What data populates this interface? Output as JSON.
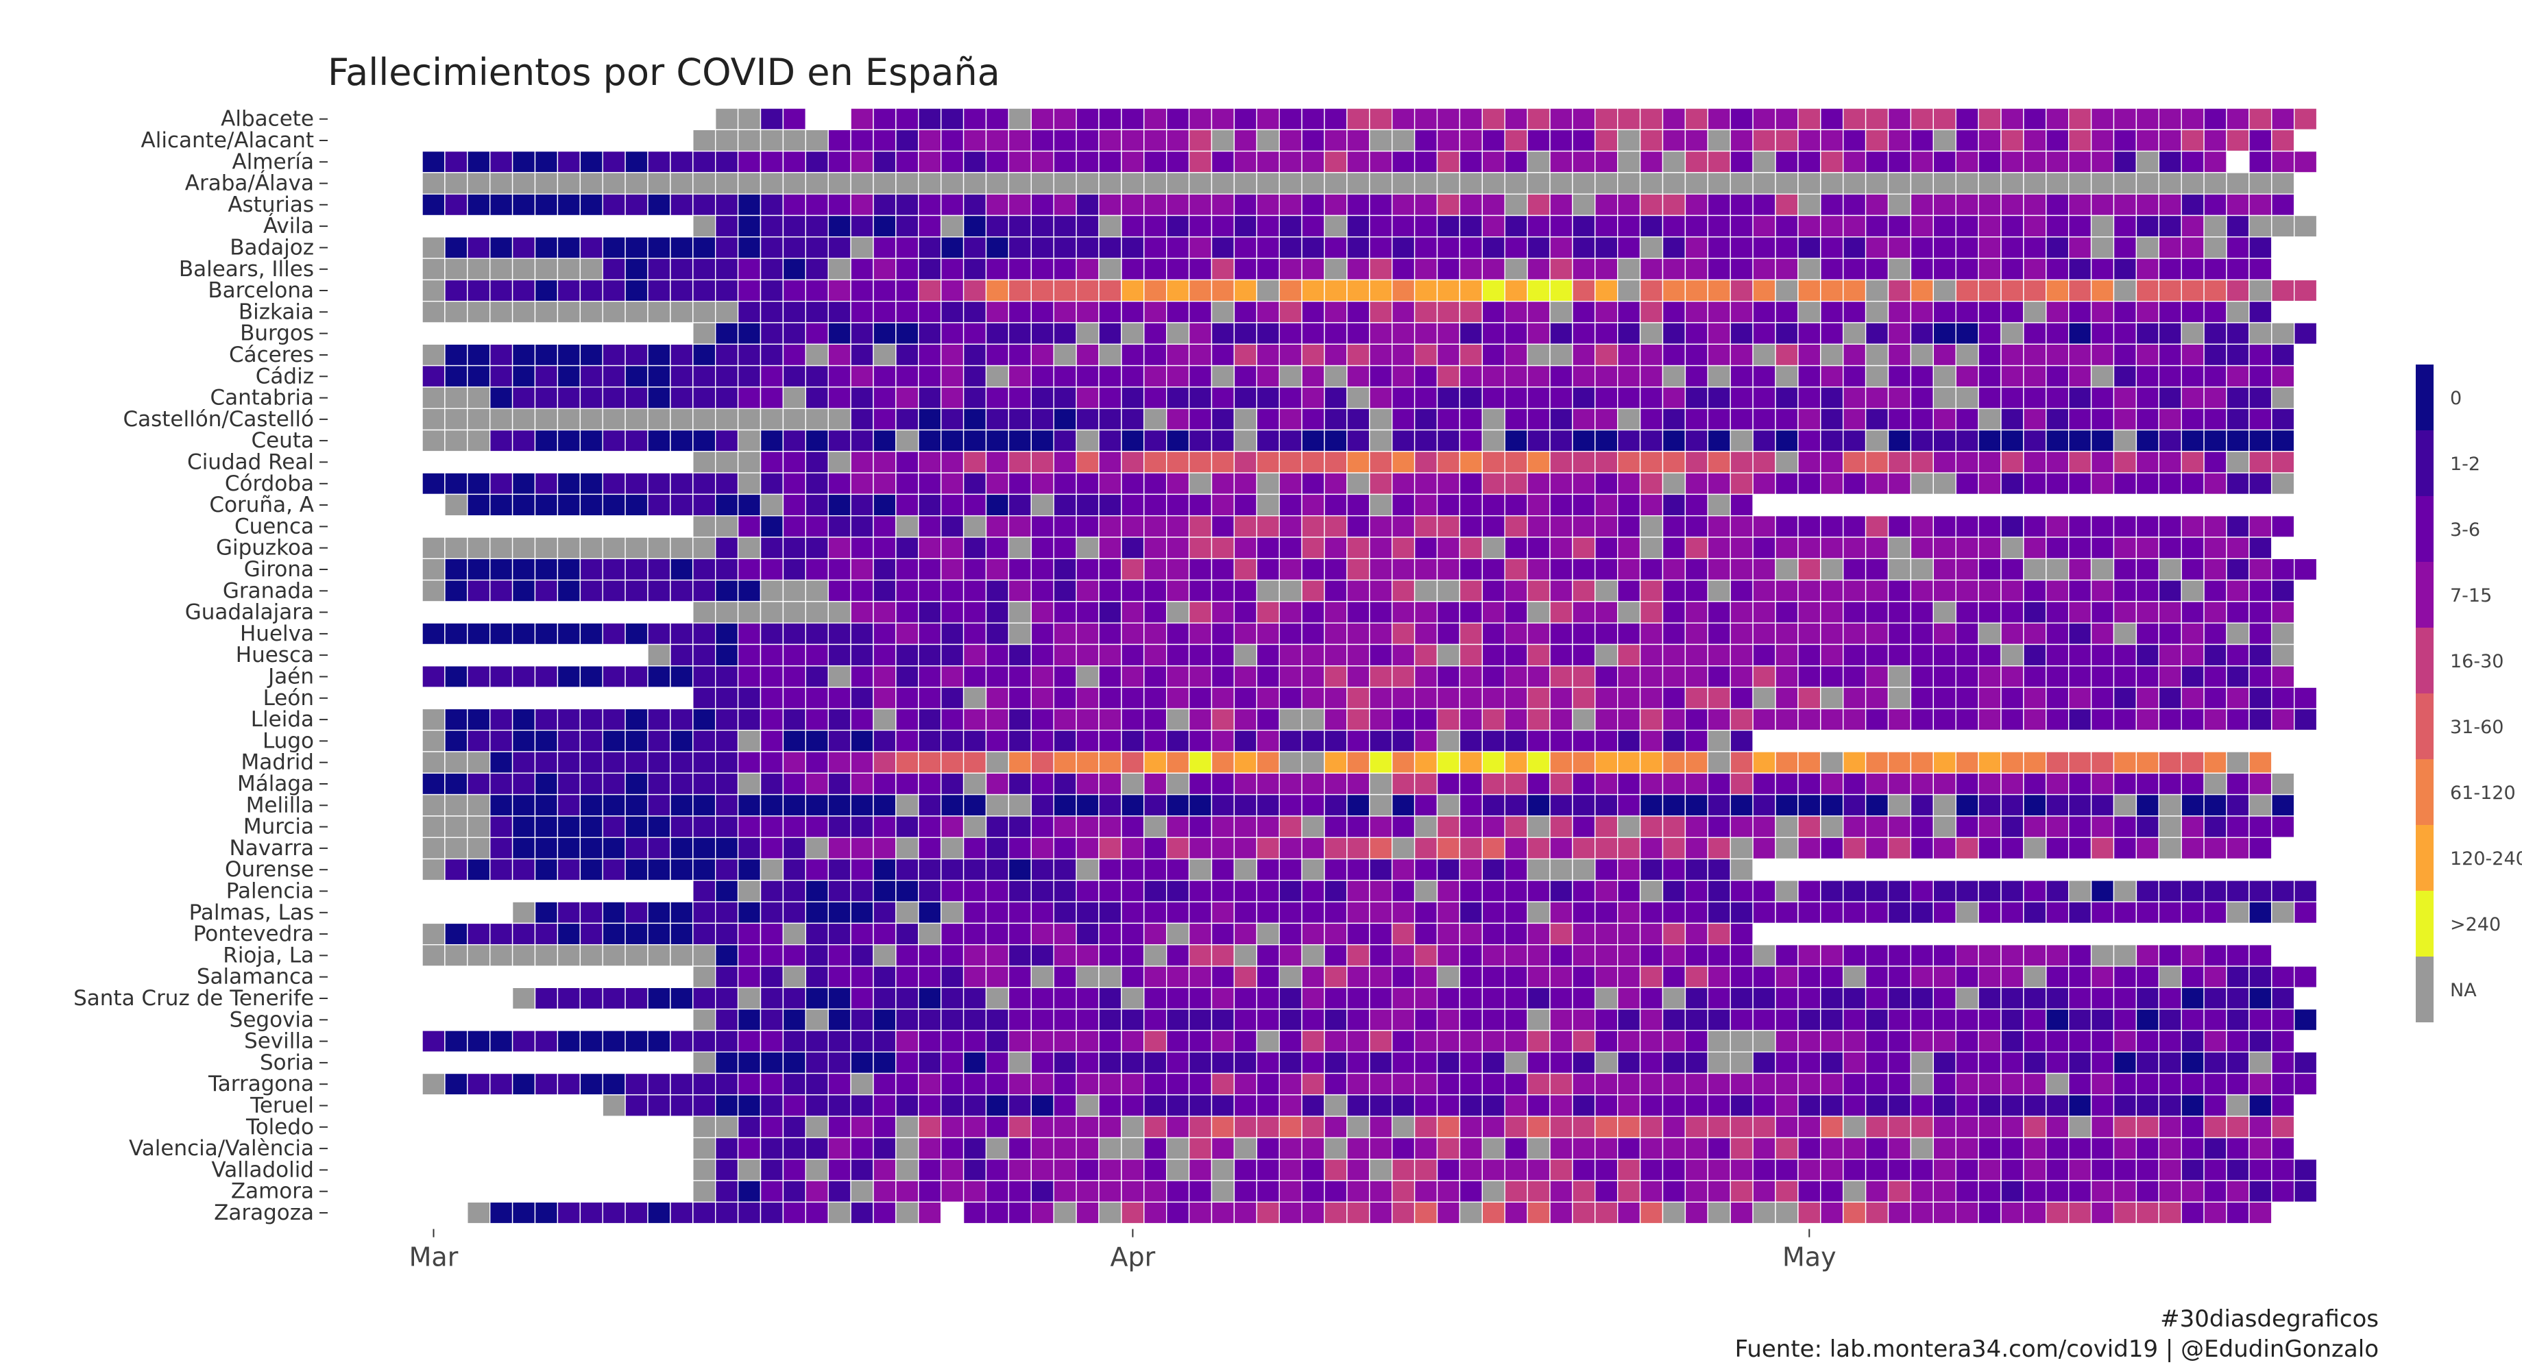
{
  "chart_data": {
    "type": "heatmap",
    "title": "Fallecimientos por COVID en España",
    "caption_line1": "#30diasdegraficos",
    "caption_line2": "Fuente: lab.montera34.com/covid19 |  @EdudinGonzalo",
    "x_ticks": [
      {
        "label": "Mar",
        "day": 0
      },
      {
        "label": "Apr",
        "day": 31
      },
      {
        "label": "May",
        "day": 61
      }
    ],
    "days": 84,
    "provinces": [
      "Albacete",
      "Alicante/Alacant",
      "Almería",
      "Araba/Álava",
      "Asturias",
      "Ávila",
      "Badajoz",
      "Balears, Illes",
      "Barcelona",
      "Bizkaia",
      "Burgos",
      "Cáceres",
      "Cádiz",
      "Cantabria",
      "Castellón/Castelló",
      "Ceuta",
      "Ciudad Real",
      "Córdoba",
      "Coruña, A",
      "Cuenca",
      "Gipuzkoa",
      "Girona",
      "Granada",
      "Guadalajara",
      "Huelva",
      "Huesca",
      "Jaén",
      "León",
      "Lleida",
      "Lugo",
      "Madrid",
      "Málaga",
      "Melilla",
      "Murcia",
      "Navarra",
      "Ourense",
      "Palencia",
      "Palmas, Las",
      "Pontevedra",
      "Rioja, La",
      "Salamanca",
      "Santa Cruz de Tenerife",
      "Segovia",
      "Sevilla",
      "Soria",
      "Tarragona",
      "Teruel",
      "Toledo",
      "Valencia/València",
      "Valladolid",
      "Zamora",
      "Zaragoza"
    ],
    "legend": [
      {
        "label": "0",
        "color": "#0d0887"
      },
      {
        "label": "1-2",
        "color": "#41049d"
      },
      {
        "label": "3-6",
        "color": "#6a00a8"
      },
      {
        "label": "7-15",
        "color": "#8f0da4"
      },
      {
        "label": "16-30",
        "color": "#c33d80"
      },
      {
        "label": "31-60",
        "color": "#dd5e66"
      },
      {
        "label": "61-120",
        "color": "#f1834b"
      },
      {
        "label": "120-240",
        "color": "#fca636"
      },
      {
        "label": ">240",
        "color": "#e9f524"
      },
      {
        "label": "NA",
        "color": "#999999"
      }
    ],
    "rows": [
      {
        "start": 13,
        "end": 83,
        "na": [
          13
        ],
        "profile": [
          2,
          3,
          3
        ],
        "blanks": [
          17,
          18
        ]
      },
      {
        "start": 12,
        "end": 82,
        "na": [
          12,
          13,
          14,
          15,
          16,
          17
        ],
        "profile": [
          2,
          3,
          3
        ]
      },
      {
        "start": 0,
        "end": 83,
        "na": [],
        "profile": [
          2,
          3,
          2
        ],
        "blanks": [
          80
        ]
      },
      {
        "start": 0,
        "end": 82,
        "na": [
          0,
          1,
          2,
          3,
          4,
          5,
          6,
          7,
          8,
          9,
          10,
          11,
          12,
          13,
          14,
          15,
          16,
          17,
          18,
          19,
          20,
          21,
          22,
          23,
          24,
          25,
          26,
          27,
          28,
          29,
          30,
          31,
          32,
          33,
          34,
          35,
          36,
          37,
          38,
          39,
          40,
          41,
          42,
          43,
          44,
          45,
          46,
          47,
          48,
          49,
          50,
          51,
          52,
          53,
          54,
          55,
          56,
          57,
          58,
          59,
          60,
          61,
          62,
          63,
          64,
          65,
          66,
          67,
          68,
          69,
          70,
          71,
          72,
          73,
          74,
          75,
          76,
          77,
          78,
          79,
          80,
          81,
          82
        ],
        "profile": [
          0,
          0,
          0
        ]
      },
      {
        "start": 0,
        "end": 82,
        "na": [],
        "profile": [
          2,
          3,
          2
        ]
      },
      {
        "start": 12,
        "end": 83,
        "na": [
          12
        ],
        "profile": [
          1,
          2,
          2
        ]
      },
      {
        "start": 0,
        "end": 81,
        "na": [
          0
        ],
        "profile": [
          1,
          2,
          2
        ]
      },
      {
        "start": 0,
        "end": 81,
        "na": [
          0,
          1,
          2,
          3,
          4,
          5,
          6,
          7
        ],
        "profile": [
          2,
          3,
          2
        ]
      },
      {
        "start": 0,
        "end": 83,
        "na": [
          0
        ],
        "profile": [
          3,
          6,
          4
        ],
        "peak": [
          24,
          50
        ]
      },
      {
        "start": 0,
        "end": 81,
        "na": [
          0,
          1,
          2,
          3,
          4,
          5,
          6,
          7,
          8,
          9,
          10,
          11,
          12,
          13
        ],
        "profile": [
          2,
          3,
          2
        ]
      },
      {
        "start": 12,
        "end": 83,
        "na": [
          12
        ],
        "profile": [
          1,
          2,
          1
        ]
      },
      {
        "start": 0,
        "end": 82,
        "na": [
          0
        ],
        "profile": [
          2,
          3,
          2
        ]
      },
      {
        "start": 0,
        "end": 82,
        "na": [],
        "profile": [
          2,
          3,
          2
        ]
      },
      {
        "start": 0,
        "end": 82,
        "na": [
          0,
          1,
          2
        ],
        "profile": [
          2,
          2,
          2
        ]
      },
      {
        "start": 0,
        "end": 82,
        "na": [
          0,
          1,
          2,
          3,
          4,
          5,
          6,
          7,
          8,
          9,
          10,
          11,
          12,
          13,
          14,
          15,
          16,
          17,
          18
        ],
        "profile": [
          1,
          2,
          2
        ]
      },
      {
        "start": 0,
        "end": 82,
        "na": [
          0,
          1,
          2
        ],
        "profile": [
          0,
          1,
          0
        ]
      },
      {
        "start": 12,
        "end": 82,
        "na": [
          12,
          13,
          14
        ],
        "profile": [
          3,
          5,
          3
        ]
      },
      {
        "start": 0,
        "end": 82,
        "na": [],
        "profile": [
          2,
          3,
          2
        ]
      },
      {
        "start": 1,
        "end": 58,
        "na": [
          1
        ],
        "profile": [
          1,
          2,
          1
        ]
      },
      {
        "start": 12,
        "end": 82,
        "na": [
          12,
          13
        ],
        "profile": [
          2,
          3,
          2
        ]
      },
      {
        "start": 0,
        "end": 81,
        "na": [
          0,
          1,
          2,
          3,
          4,
          5,
          6,
          7,
          8,
          9,
          10,
          11,
          12
        ],
        "profile": [
          2,
          3,
          2
        ]
      },
      {
        "start": 0,
        "end": 83,
        "na": [
          0
        ],
        "profile": [
          2,
          3,
          2
        ]
      },
      {
        "start": 0,
        "end": 82,
        "na": [
          0
        ],
        "profile": [
          2,
          3,
          2
        ]
      },
      {
        "start": 12,
        "end": 82,
        "na": [
          12,
          13,
          14,
          15,
          16,
          17,
          18
        ],
        "profile": [
          2,
          3,
          2
        ]
      },
      {
        "start": 0,
        "end": 82,
        "na": [],
        "profile": [
          2,
          3,
          2
        ]
      },
      {
        "start": 10,
        "end": 82,
        "na": [
          10
        ],
        "profile": [
          2,
          3,
          2
        ]
      },
      {
        "start": 0,
        "end": 82,
        "na": [],
        "profile": [
          2,
          3,
          2
        ]
      },
      {
        "start": 12,
        "end": 83,
        "na": [],
        "profile": [
          2,
          3,
          2
        ]
      },
      {
        "start": 0,
        "end": 83,
        "na": [
          0
        ],
        "profile": [
          2,
          3,
          2
        ]
      },
      {
        "start": 0,
        "end": 58,
        "na": [
          0
        ],
        "profile": [
          1,
          2,
          1
        ]
      },
      {
        "start": 0,
        "end": 81,
        "na": [
          0,
          1,
          2
        ],
        "profile": [
          3,
          7,
          5
        ],
        "peak": [
          20,
          34
        ]
      },
      {
        "start": 0,
        "end": 82,
        "na": [],
        "profile": [
          2,
          3,
          2
        ]
      },
      {
        "start": 0,
        "end": 82,
        "na": [
          0,
          1,
          2
        ],
        "profile": [
          0,
          1,
          0
        ]
      },
      {
        "start": 0,
        "end": 82,
        "na": [
          0,
          1,
          2
        ],
        "profile": [
          2,
          3,
          2
        ]
      },
      {
        "start": 0,
        "end": 81,
        "na": [
          0,
          1,
          2
        ],
        "profile": [
          2,
          4,
          2
        ]
      },
      {
        "start": 0,
        "end": 58,
        "na": [
          0
        ],
        "profile": [
          1,
          2,
          1
        ]
      },
      {
        "start": 12,
        "end": 83,
        "na": [],
        "profile": [
          1,
          2,
          1
        ]
      },
      {
        "start": 4,
        "end": 83,
        "na": [
          4
        ],
        "profile": [
          1,
          2,
          1
        ]
      },
      {
        "start": 0,
        "end": 58,
        "na": [
          0
        ],
        "profile": [
          2,
          3,
          2
        ]
      },
      {
        "start": 0,
        "end": 81,
        "na": [
          0,
          1,
          2,
          3,
          4,
          5,
          6,
          7,
          8,
          9,
          10,
          11,
          12
        ],
        "profile": [
          2,
          3,
          2
        ]
      },
      {
        "start": 12,
        "end": 83,
        "na": [
          12
        ],
        "profile": [
          2,
          3,
          2
        ]
      },
      {
        "start": 4,
        "end": 82,
        "na": [
          4
        ],
        "profile": [
          1,
          2,
          1
        ]
      },
      {
        "start": 12,
        "end": 83,
        "na": [
          12
        ],
        "profile": [
          1,
          2,
          1
        ]
      },
      {
        "start": 0,
        "end": 82,
        "na": [],
        "profile": [
          2,
          3,
          2
        ]
      },
      {
        "start": 12,
        "end": 83,
        "na": [
          12
        ],
        "profile": [
          1,
          2,
          1
        ]
      },
      {
        "start": 0,
        "end": 83,
        "na": [
          0
        ],
        "profile": [
          2,
          3,
          2
        ]
      },
      {
        "start": 8,
        "end": 82,
        "na": [
          8
        ],
        "profile": [
          1,
          2,
          1
        ]
      },
      {
        "start": 12,
        "end": 82,
        "na": [
          12,
          13
        ],
        "profile": [
          3,
          4,
          3
        ]
      },
      {
        "start": 12,
        "end": 82,
        "na": [
          12
        ],
        "profile": [
          2,
          3,
          2
        ]
      },
      {
        "start": 12,
        "end": 83,
        "na": [
          12
        ],
        "profile": [
          2,
          3,
          2
        ]
      },
      {
        "start": 12,
        "end": 83,
        "na": [
          12
        ],
        "profile": [
          2,
          3,
          2
        ]
      },
      {
        "start": 2,
        "end": 81,
        "na": [
          2
        ],
        "profile": [
          2,
          4,
          3
        ],
        "blanks": [
          23
        ]
      }
    ]
  }
}
